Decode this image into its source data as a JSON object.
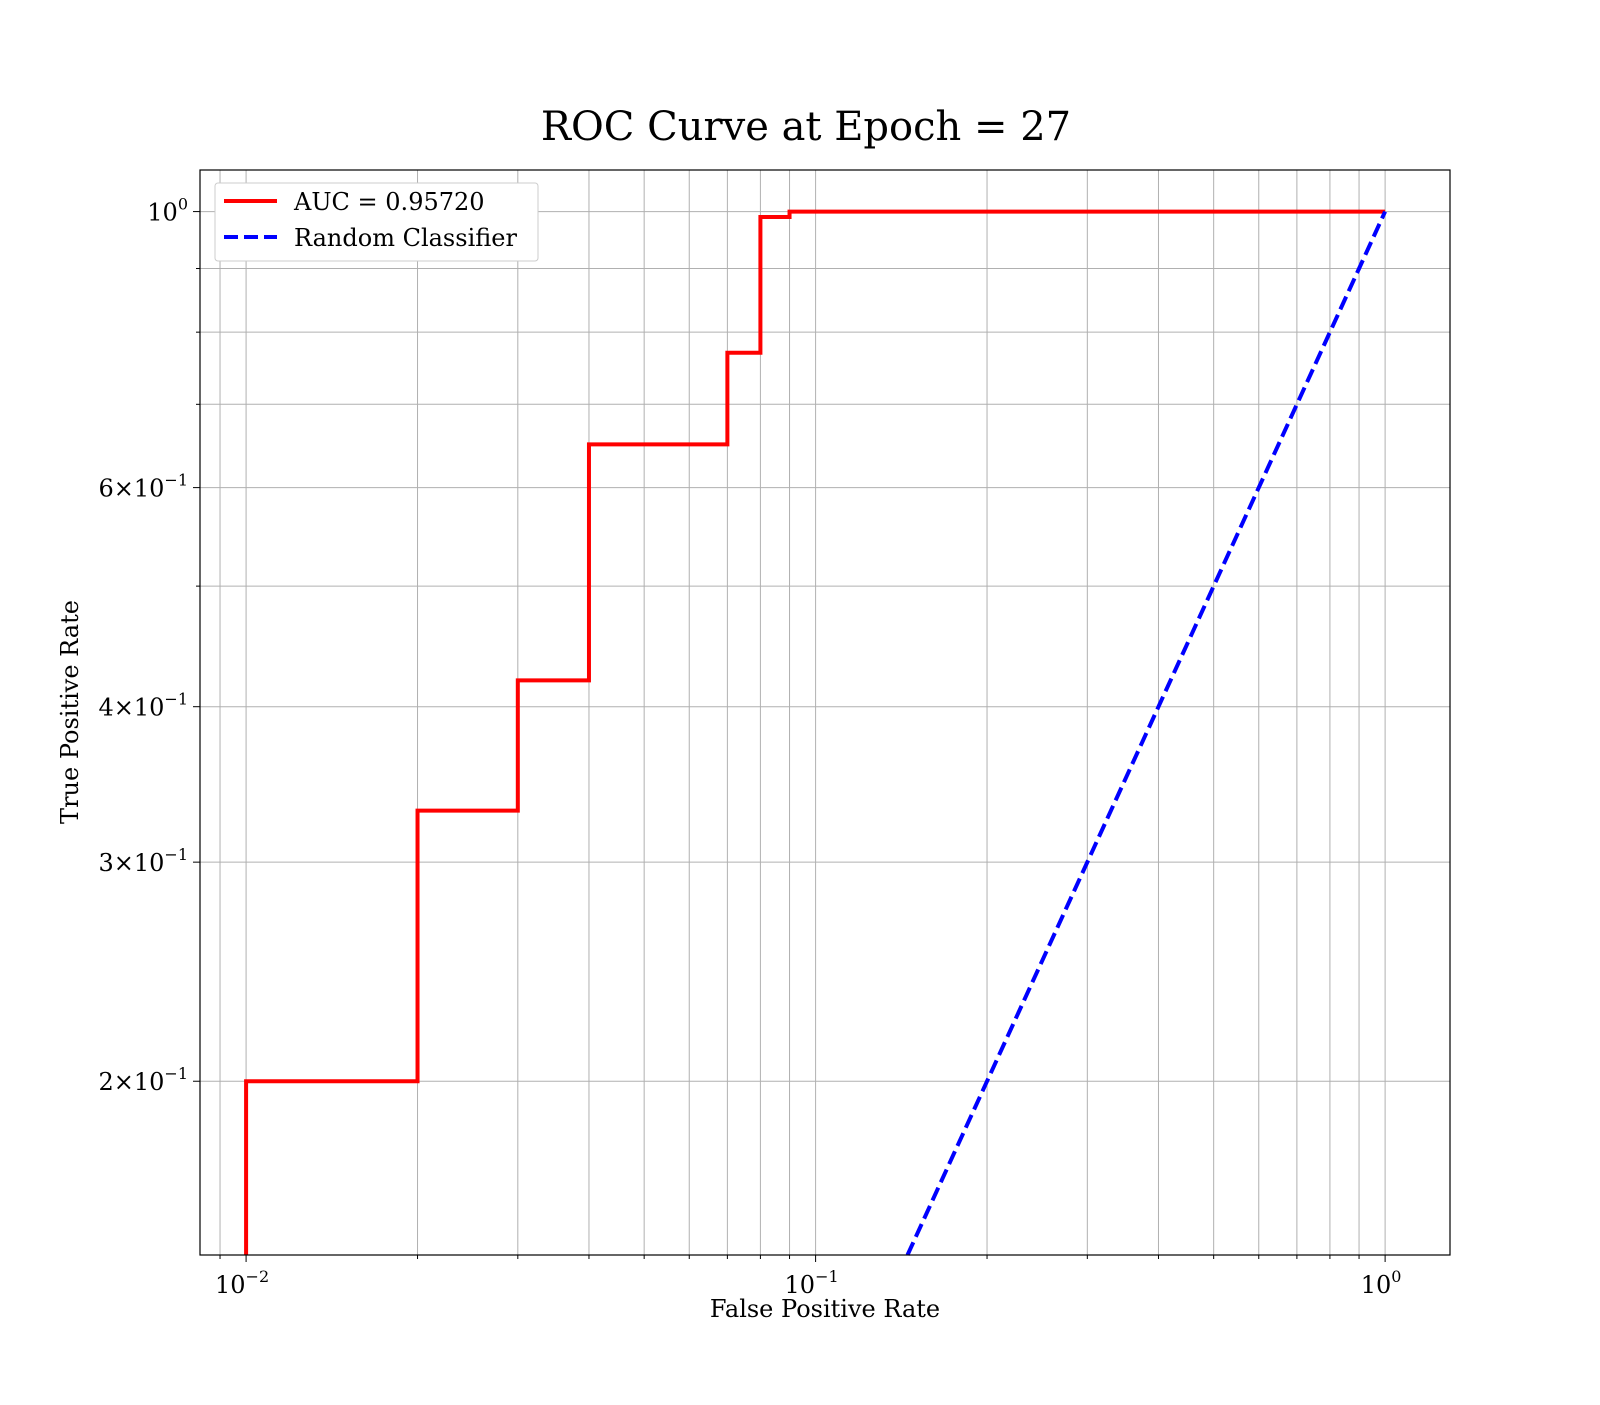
{
  "chart_data": {
    "type": "line",
    "title": "ROC Curve at Epoch = 27",
    "xlabel": "False Positive Rate",
    "ylabel": "True Positive Rate",
    "xscale": "log",
    "yscale": "log",
    "xlim": [
      0.0083,
      1.3
    ],
    "ylim": [
      0.145,
      1.08
    ],
    "grid": true,
    "legend_position": "upper-left",
    "x_tick_labels": [
      {
        "value": 0.01,
        "base": "10",
        "exp": "−2"
      },
      {
        "value": 0.1,
        "base": "10",
        "exp": "−1"
      },
      {
        "value": 1,
        "base": "10",
        "exp": "0"
      }
    ],
    "y_tick_labels": [
      {
        "value": 0.2,
        "mant": "2",
        "base": "10",
        "exp": "−1"
      },
      {
        "value": 0.3,
        "mant": "3",
        "base": "10",
        "exp": "−1"
      },
      {
        "value": 0.4,
        "mant": "4",
        "base": "10",
        "exp": "−1"
      },
      {
        "value": 0.6,
        "mant": "6",
        "base": "10",
        "exp": "−1"
      },
      {
        "value": 1.0,
        "mant": "",
        "base": "10",
        "exp": "0"
      }
    ],
    "series": [
      {
        "name": "AUC = 0.95720",
        "color": "#ff0000",
        "dash": "solid",
        "x": [
          0.01,
          0.01,
          0.02,
          0.02,
          0.03,
          0.03,
          0.04,
          0.04,
          0.07,
          0.07,
          0.08,
          0.08,
          0.09,
          0.09,
          1.0
        ],
        "y": [
          0.145,
          0.2,
          0.2,
          0.33,
          0.33,
          0.42,
          0.42,
          0.65,
          0.65,
          0.77,
          0.77,
          0.99,
          0.99,
          1.0,
          1.0
        ]
      },
      {
        "name": "Random Classifier",
        "color": "#0000ff",
        "dash": "dashed",
        "x": [
          0.145,
          1.0
        ],
        "y": [
          0.145,
          1.0
        ]
      }
    ]
  }
}
